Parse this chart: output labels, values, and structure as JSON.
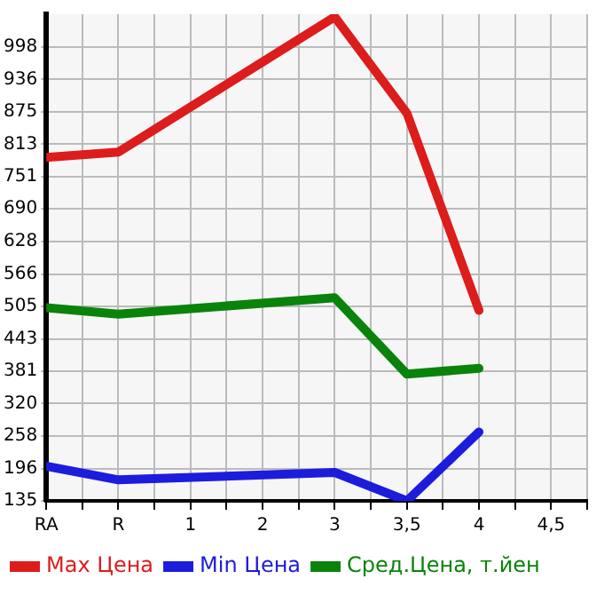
{
  "chart_data": {
    "type": "line",
    "categories": [
      "RA",
      "R",
      "1",
      "2",
      "3",
      "3,5",
      "4",
      "4,5"
    ],
    "series": [
      {
        "name": "Max Цена",
        "color": "#dd1c1c",
        "values": [
          788,
          798,
          null,
          null,
          1055,
          872,
          497,
          null
        ]
      },
      {
        "name": "Min Цена",
        "color": "#1c1cdd",
        "values": [
          201,
          175,
          null,
          null,
          189,
          135,
          266,
          null
        ]
      },
      {
        "name": "Сред.Цена, т.йен",
        "color": "#0a830a",
        "values": [
          502,
          490,
          null,
          null,
          521,
          376,
          387,
          null
        ]
      }
    ],
    "ylim": [
      135,
      1060
    ],
    "yticks": [
      135,
      196,
      258,
      320,
      381,
      443,
      505,
      566,
      628,
      690,
      751,
      813,
      875,
      936,
      998
    ],
    "grid": true,
    "legend": "bottom left",
    "marker": "none",
    "line_style": "solid"
  }
}
